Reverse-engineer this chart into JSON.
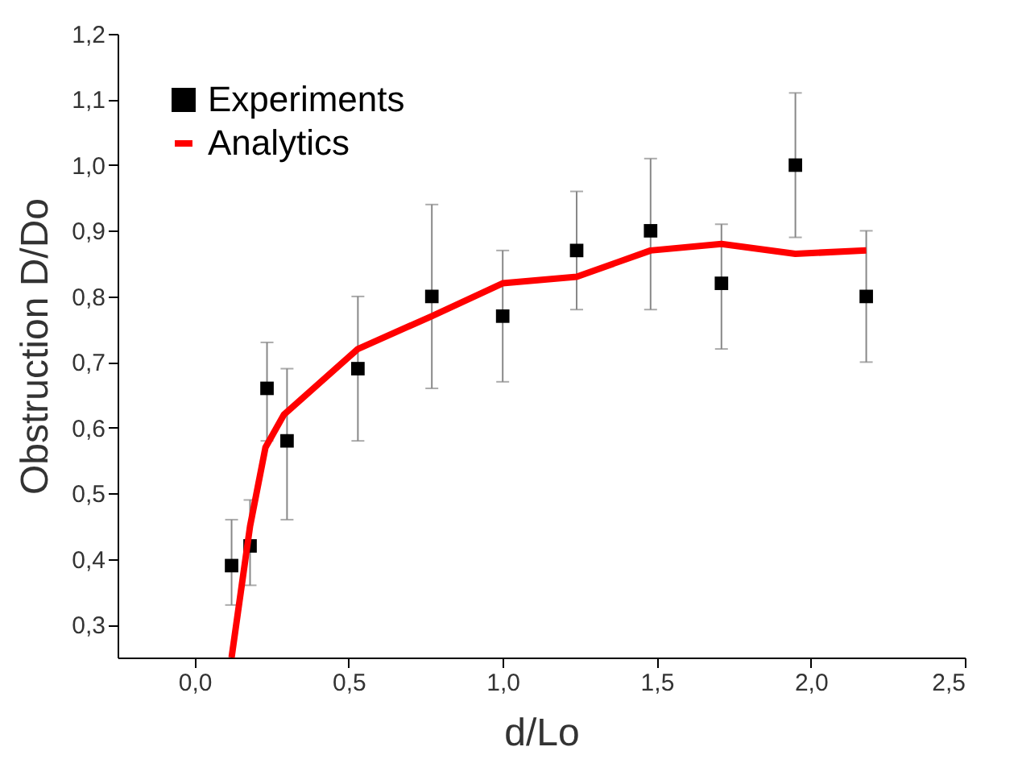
{
  "chart_data": {
    "type": "scatter",
    "xlabel": "d/Lo",
    "ylabel": "Obstruction D/Do",
    "legend": "top left",
    "xlim": [
      -0.25,
      2.5
    ],
    "xticks": [
      {
        "value": 0,
        "label": "0,0"
      },
      {
        "value": 0.5,
        "label": "0,5"
      },
      {
        "value": 1,
        "label": "1,0"
      },
      {
        "value": 1.5,
        "label": "1,5"
      },
      {
        "value": 2,
        "label": "2,0"
      },
      {
        "value": 2.5,
        "label": "2,5"
      }
    ],
    "ylim": [
      0.25,
      1.2
    ],
    "yticks": [
      {
        "value": 0.3,
        "label": "0,3"
      },
      {
        "value": 0.4,
        "label": "0,4"
      },
      {
        "value": 0.5,
        "label": "0,5"
      },
      {
        "value": 0.6,
        "label": "0,6"
      },
      {
        "value": 0.7,
        "label": "0,7"
      },
      {
        "value": 0.8,
        "label": "0,8"
      },
      {
        "value": 0.9,
        "label": "0,9"
      },
      {
        "value": 1.0,
        "label": "1,0"
      },
      {
        "value": 1.1,
        "label": "1,1"
      },
      {
        "value": 1.2,
        "label": "1,2"
      }
    ],
    "series": [
      {
        "name": "Experiments",
        "marker": "square",
        "color": "#000000",
        "x": [
          0.12,
          0.18,
          0.235,
          0.3,
          0.53,
          0.77,
          1.0,
          1.24,
          1.48,
          1.71,
          1.95,
          2.18
        ],
        "values": [
          0.39,
          0.42,
          0.66,
          0.58,
          0.69,
          0.8,
          0.77,
          0.87,
          0.9,
          0.82,
          1.0,
          0.8
        ],
        "errors": [
          [
            0.33,
            0.46
          ],
          [
            0.36,
            0.49
          ],
          [
            0.58,
            0.73
          ],
          [
            0.46,
            0.69
          ],
          [
            0.58,
            0.8
          ],
          [
            0.66,
            0.94
          ],
          [
            0.67,
            0.87
          ],
          [
            0.78,
            0.96
          ],
          [
            0.78,
            1.01
          ],
          [
            0.72,
            0.91
          ],
          [
            0.89,
            1.11
          ],
          [
            0.7,
            0.9
          ]
        ]
      },
      {
        "name": "Analytics",
        "type": "line",
        "color": "#ff0000",
        "x": [
          0.12,
          0.18,
          0.23,
          0.29,
          0.53,
          0.77,
          1.0,
          1.24,
          1.48,
          1.71,
          1.95,
          2.18
        ],
        "values": [
          0.25,
          0.45,
          0.57,
          0.62,
          0.72,
          0.77,
          0.82,
          0.83,
          0.87,
          0.88,
          0.865,
          0.87
        ]
      }
    ]
  }
}
